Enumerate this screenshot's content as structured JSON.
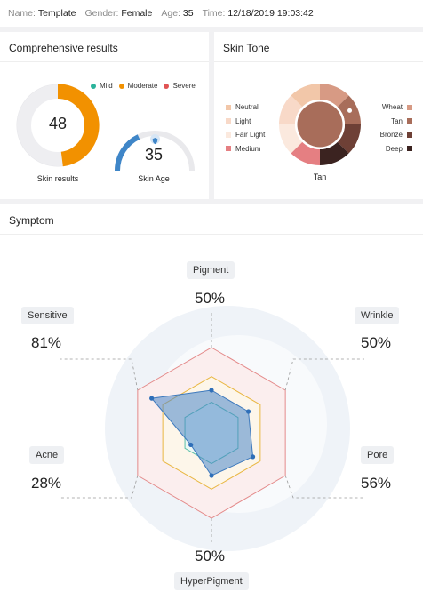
{
  "header": {
    "name_label": "Name:",
    "name_value": "Template",
    "gender_label": "Gender:",
    "gender_value": "Female",
    "age_label": "Age:",
    "age_value": "35",
    "time_label": "Time:",
    "time_value": "12/18/2019 19:03:42"
  },
  "comprehensive": {
    "title": "Comprehensive results",
    "skin_results_value": "48",
    "skin_results_label": "Skin results",
    "skin_results_fraction": 0.48,
    "skin_age_value": "35",
    "skin_age_label": "Skin Age",
    "legend": [
      {
        "label": "Mild",
        "color": "#2bb39b"
      },
      {
        "label": "Moderate",
        "color": "#f29100"
      },
      {
        "label": "Severe",
        "color": "#e05353"
      }
    ]
  },
  "skin_tone": {
    "title": "Skin Tone",
    "selected": "Tan",
    "left_legend": [
      {
        "label": "Neutral",
        "color": "#f2c7a9"
      },
      {
        "label": "Light",
        "color": "#f8d9c8"
      },
      {
        "label": "Fair Light",
        "color": "#fbe9de"
      },
      {
        "label": "Medium",
        "color": "#e57f82"
      }
    ],
    "right_legend": [
      {
        "label": "Wheat",
        "color": "#d79a84"
      },
      {
        "label": "Tan",
        "color": "#a86d5a"
      },
      {
        "label": "Bronze",
        "color": "#6e4036"
      },
      {
        "label": "Deep",
        "color": "#3b2320"
      }
    ]
  },
  "symptom": {
    "title": "Symptom",
    "axes": [
      {
        "label": "Pigment",
        "value": "50%"
      },
      {
        "label": "Wrinkle",
        "value": "50%"
      },
      {
        "label": "Pore",
        "value": "56%"
      },
      {
        "label": "HyperPigment",
        "value": "50%"
      },
      {
        "label": "Acne",
        "value": "28%"
      },
      {
        "label": "Sensitive",
        "value": "81%"
      }
    ],
    "polygon_values": [
      0.5,
      0.5,
      0.56,
      0.5,
      0.28,
      0.81
    ]
  }
}
